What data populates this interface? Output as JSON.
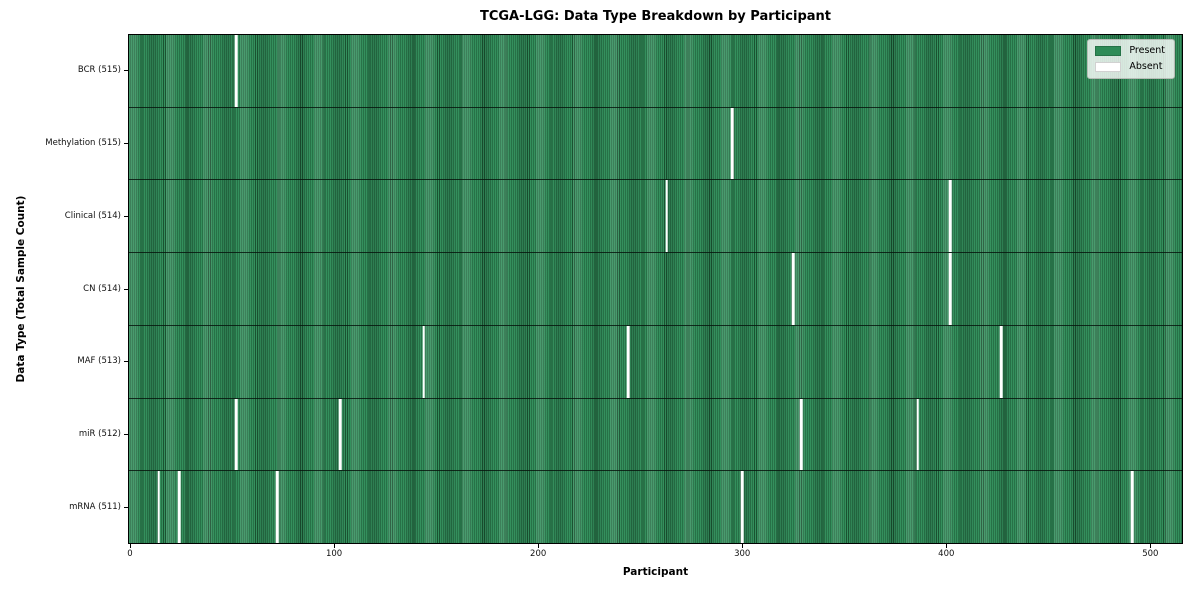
{
  "colors": {
    "present": "#2e8b57",
    "absent": "#ffffff",
    "stripe_edge": "#1a5231",
    "plot_border": "#000000"
  },
  "chart_data": {
    "type": "heatmap",
    "title": "TCGA-LGG: Data Type Breakdown by Participant",
    "xlabel": "Participant",
    "ylabel": "Data Type (Total Sample Count)",
    "x_ticks": [
      0,
      100,
      200,
      300,
      400,
      500
    ],
    "x_range": [
      -0.5,
      515.5
    ],
    "n_participants": 516,
    "grid": false,
    "legend": {
      "position": "upper right",
      "entries": [
        {
          "label": "Present",
          "color": "#2e8b57"
        },
        {
          "label": "Absent",
          "color": "#ffffff"
        }
      ]
    },
    "rows": [
      {
        "label": "BCR (515)",
        "data_type": "BCR",
        "present_count": 515,
        "absent_participants": [
          52
        ]
      },
      {
        "label": "Methylation (515)",
        "data_type": "Methylation",
        "present_count": 515,
        "absent_participants": [
          295
        ]
      },
      {
        "label": "Clinical (514)",
        "data_type": "Clinical",
        "present_count": 514,
        "absent_participants": [
          263,
          402
        ]
      },
      {
        "label": "CN (514)",
        "data_type": "CN",
        "present_count": 514,
        "absent_participants": [
          325,
          402
        ]
      },
      {
        "label": "MAF (513)",
        "data_type": "MAF",
        "present_count": 513,
        "absent_participants": [
          144,
          244,
          427
        ]
      },
      {
        "label": "miR (512)",
        "data_type": "miR",
        "present_count": 512,
        "absent_participants": [
          52,
          103,
          329,
          386
        ]
      },
      {
        "label": "mRNA (511)",
        "data_type": "mRNA",
        "present_count": 511,
        "absent_participants": [
          14,
          24,
          72,
          300,
          491
        ]
      }
    ]
  }
}
